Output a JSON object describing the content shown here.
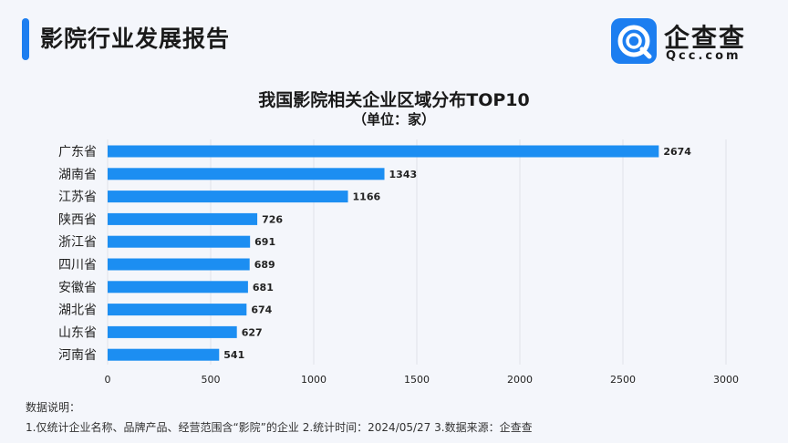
{
  "header": {
    "title": "影院行业发展报告",
    "logo": {
      "name": "企查查",
      "domain": "Qcc.com",
      "icon": "qcc-logo-icon"
    }
  },
  "colors": {
    "accent": "#1c7ef0",
    "bar": "#1c8ef2",
    "grid": "#dfe3ea"
  },
  "chart_data": {
    "type": "bar",
    "orientation": "horizontal",
    "title": "我国影院相关企业区域分布TOP10",
    "subtitle": "（单位：家）",
    "categories": [
      "广东省",
      "湖南省",
      "江苏省",
      "陕西省",
      "浙江省",
      "四川省",
      "安徽省",
      "湖北省",
      "山东省",
      "河南省"
    ],
    "values": [
      2674,
      1343,
      1166,
      726,
      691,
      689,
      681,
      674,
      627,
      541
    ],
    "xlim": [
      0,
      3000
    ],
    "xticks": [
      0,
      500,
      1000,
      1500,
      2000,
      2500,
      3000
    ],
    "grid": true,
    "legend": "none"
  },
  "notes": {
    "heading": "数据说明：",
    "body": "1.仅统计企业名称、品牌产品、经营范围含“影院”的企业  2.统计时间：2024/05/27  3.数据来源：企查查"
  }
}
